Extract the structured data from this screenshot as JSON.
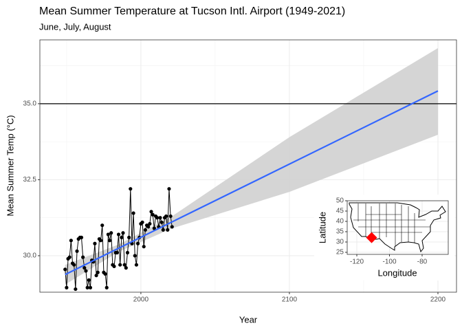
{
  "chart_data": [
    {
      "type": "line",
      "title": "Mean Summer Temperature at Tucson Intl. Airport (1949-2021)",
      "subtitle": "June, July, August",
      "xlabel": "Year",
      "ylabel": "Mean Summer Temp (°C)",
      "xlim": [
        1932,
        2212.5
      ],
      "ylim": [
        28.8,
        37.1
      ],
      "xticks": [
        2000,
        2100,
        2200
      ],
      "yticks": [
        {
          "value": 30,
          "label": "30.0"
        },
        {
          "value": 32.5,
          "label": "32.5"
        },
        {
          "value": 35,
          "label": "35.0"
        }
      ],
      "x_minor_ticks": [
        1950,
        2050,
        2150
      ],
      "y_minor_ticks": [
        31.25,
        33.75,
        36.25
      ],
      "grid": true,
      "series": [
        {
          "color": "#000000",
          "x": [
            1949,
            1950,
            1951,
            1952,
            1953,
            1954,
            1955,
            1956,
            1957,
            1958,
            1959,
            1960,
            1961,
            1962,
            1963,
            1964,
            1965,
            1966,
            1967,
            1968,
            1969,
            1970,
            1971,
            1972,
            1973,
            1974,
            1975,
            1976,
            1977,
            1978,
            1979,
            1980,
            1981,
            1982,
            1983,
            1984,
            1985,
            1986,
            1987,
            1988,
            1989,
            1990,
            1991,
            1992,
            1993,
            1994,
            1995,
            1996,
            1997,
            1998,
            1999,
            2000,
            2001,
            2002,
            2003,
            2004,
            2005,
            2006,
            2007,
            2008,
            2009,
            2010,
            2011,
            2012,
            2013,
            2014,
            2015,
            2016,
            2017,
            2018,
            2019,
            2020,
            2021
          ],
          "values": [
            29.55,
            28.95,
            29.9,
            29.95,
            30.5,
            29.75,
            29.7,
            28.9,
            30.15,
            30.55,
            30.6,
            30.6,
            29.95,
            29.6,
            29.5,
            28.95,
            29.2,
            28.95,
            29.85,
            29.8,
            30.4,
            29.35,
            29.45,
            30.55,
            30.5,
            31.0,
            29.45,
            29.4,
            28.95,
            30.7,
            30.5,
            30.75,
            29.7,
            29.65,
            30.1,
            30.1,
            30.7,
            29.7,
            30.6,
            30.75,
            29.7,
            29.6,
            30.1,
            30.6,
            32.2,
            30.4,
            31.4,
            30.0,
            29.7,
            30.4,
            30.6,
            31.05,
            31.1,
            30.3,
            30.85,
            31.0,
            30.95,
            31.05,
            31.45,
            31.35,
            30.9,
            31.3,
            31.25,
            30.95,
            31.25,
            31.1,
            30.85,
            31.25,
            31.3,
            30.85,
            32.2,
            31.3,
            30.95
          ]
        }
      ],
      "trend": {
        "color": "#3366ff",
        "x": [
          1949,
          2200
        ],
        "values": [
          29.38,
          35.42
        ]
      },
      "ribbon": {
        "color": "#d3d3d3",
        "x": [
          1949,
          1985,
          2021,
          2100,
          2200
        ],
        "lower": [
          29.05,
          30.13,
          30.9,
          32.1,
          33.98
        ],
        "upper": [
          29.7,
          30.37,
          31.3,
          33.9,
          36.83
        ]
      },
      "hline": 35
    },
    {
      "type": "map",
      "xlabel": "Longitude",
      "ylabel": "Latitude",
      "xlim": [
        -125.9,
        -64
      ],
      "ylim": [
        24,
        50
      ],
      "xticks": [
        -120,
        -100,
        -80
      ],
      "yticks": [
        25,
        30,
        35,
        40,
        45,
        50
      ],
      "grid": true,
      "point": {
        "x": -110.94,
        "y": 32.12,
        "color": "#ff0000"
      }
    }
  ]
}
